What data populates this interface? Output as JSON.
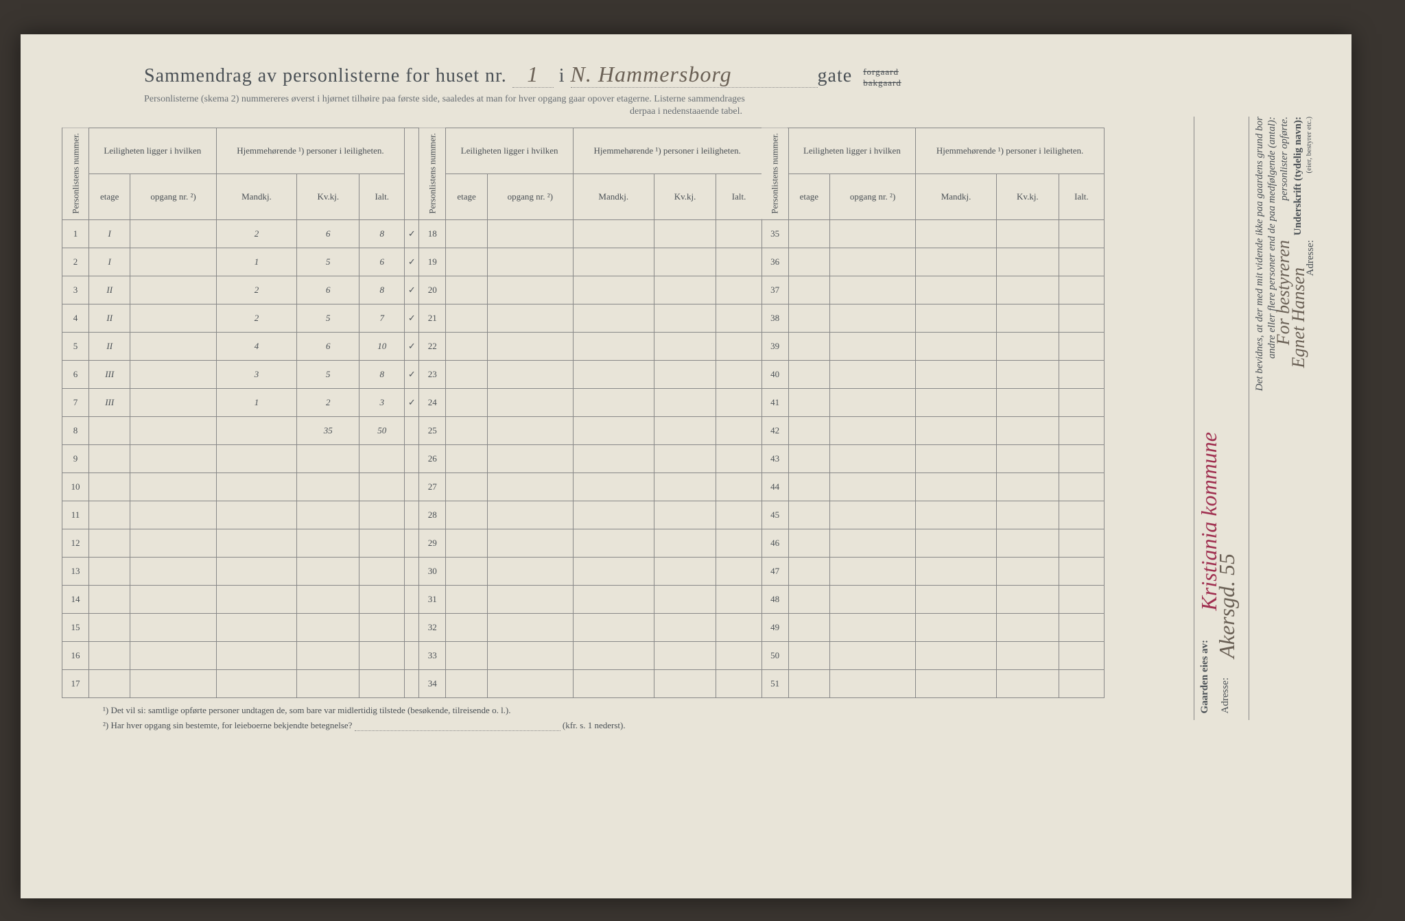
{
  "header": {
    "title_prefix": "Sammendrag av personlisterne for huset nr.",
    "house_number": "1",
    "i_label": "i",
    "street_handwritten": "N. Hammersborg",
    "gate_label": "gate",
    "forgaard": "forgaard",
    "bakgaard": "bakgaard",
    "subtitle": "Personlisterne (skema 2) nummereres øverst i hjørnet tilhøire paa første side, saaledes at man for hver opgang gaar opover etagerne.  Listerne sammendrages",
    "subtitle2": "derpaa i nedenstaaende tabel."
  },
  "columns": {
    "personlistens_nummer": "Personlistens nummer.",
    "leiligheten": "Leiligheten ligger i hvilken",
    "hjemmehorende": "Hjemmehørende ¹) personer i leiligheten.",
    "etage": "etage",
    "opgang": "opgang nr. ²)",
    "mandkj": "Mandkj.",
    "kvkj": "Kv.kj.",
    "ialt": "Ialt."
  },
  "rows_block1": [
    {
      "num": "1",
      "etage": "I",
      "mandkj": "2",
      "kvkj": "6",
      "ialt": "8",
      "check": "✓"
    },
    {
      "num": "2",
      "etage": "I",
      "mandkj": "1",
      "kvkj": "5",
      "ialt": "6",
      "check": "✓"
    },
    {
      "num": "3",
      "etage": "II",
      "mandkj": "2",
      "kvkj": "6",
      "ialt": "8",
      "check": "✓"
    },
    {
      "num": "4",
      "etage": "II",
      "mandkj": "2",
      "kvkj": "5",
      "ialt": "7",
      "check": "✓"
    },
    {
      "num": "5",
      "etage": "II",
      "mandkj": "4",
      "kvkj": "6",
      "ialt": "10",
      "check": "✓"
    },
    {
      "num": "6",
      "etage": "III",
      "mandkj": "3",
      "kvkj": "5",
      "ialt": "8",
      "check": "✓"
    },
    {
      "num": "7",
      "etage": "III",
      "mandkj": "1",
      "kvkj": "2",
      "ialt": "3",
      "check": "✓"
    },
    {
      "num": "8",
      "etage": "",
      "mandkj": "",
      "kvkj": "35",
      "ialt": "50",
      "check": ""
    },
    {
      "num": "9"
    },
    {
      "num": "10"
    },
    {
      "num": "11"
    },
    {
      "num": "12"
    },
    {
      "num": "13"
    },
    {
      "num": "14"
    },
    {
      "num": "15"
    },
    {
      "num": "16"
    },
    {
      "num": "17"
    }
  ],
  "rows_block2_nums": [
    "18",
    "19",
    "20",
    "21",
    "22",
    "23",
    "24",
    "25",
    "26",
    "27",
    "28",
    "29",
    "30",
    "31",
    "32",
    "33",
    "34"
  ],
  "rows_block3_nums": [
    "35",
    "36",
    "37",
    "38",
    "39",
    "40",
    "41",
    "42",
    "43",
    "44",
    "45",
    "46",
    "47",
    "48",
    "49",
    "50",
    "51"
  ],
  "footnotes": {
    "note1": "¹) Det vil si: samtlige opførte personer undtagen de, som bare var midlertidig tilstede (besøkende, tilreisende o. l.).",
    "note2_label": "²) Har hver opgang sin bestemte, for leieboerne bekjendte betegnelse?",
    "note2_ref": "(kfr. s. 1 nederst)."
  },
  "right_panel": {
    "gaarden_eies": "Gaarden eies av:",
    "owner": "Kristiania kommune",
    "adresse_label": "Adresse:",
    "adresse_value": "Akersgd. 55",
    "bevidnes": "Det bevidnes, at der med mit vidende ikke paa gaardens grund bor",
    "bevidnes2": "andre eller flere personer end de paa medfølgende (antal):",
    "personlister": "personlister opførte.",
    "for_bestyreren": "For bestyreren",
    "underskrift": "Underskrift (tydelig navn):",
    "signature": "Egnet Hansen",
    "eier_note": "(eier, bestyrer etc.)",
    "adresse2": "Adresse:"
  },
  "colors": {
    "page_bg": "#e8e4d8",
    "print_text": "#4a5055",
    "handwriting": "#6a6055",
    "ink_red": "#a03050",
    "border": "#888888"
  }
}
